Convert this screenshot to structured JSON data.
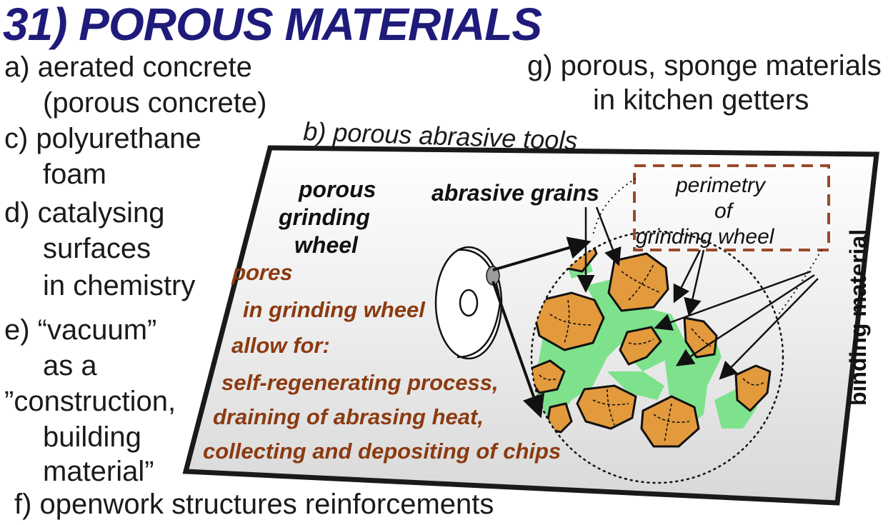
{
  "title": "31) POROUS MATERIALS",
  "items": {
    "a": [
      "a) aerated concrete",
      "(porous concrete)"
    ],
    "c": [
      "c) polyurethane",
      "foam"
    ],
    "d": [
      "d) catalysing",
      "surfaces",
      "in chemistry"
    ],
    "e": [
      "e) “vacuum”",
      "as a",
      "”construction,",
      "building",
      "material”"
    ],
    "f": "f) openwork structures reinforcements",
    "g": [
      "g) porous, sponge materials",
      "in kitchen getters"
    ]
  },
  "diagram": {
    "b_label": "b) porous abrasive tools",
    "wheel_label": [
      "porous",
      "grinding",
      "wheel"
    ],
    "grains_label": "abrasive grains",
    "perimetry_label": [
      "perimetry",
      "of",
      "grinding wheel"
    ],
    "binding_label": "binding material",
    "pores_text": [
      "pores",
      "in grinding wheel",
      "allow for:",
      "self-regenerating process,",
      "draining of abrasing heat,",
      "collecting and depositing of chips"
    ]
  },
  "colors": {
    "title": "#1f1b7a",
    "pores_text": "#8b3a10",
    "grain_fill": "#e39a3c",
    "binder_fill": "#7ee28c",
    "perimetry_box": "#9a4a2a",
    "panel_border": "#1a1a1a"
  }
}
